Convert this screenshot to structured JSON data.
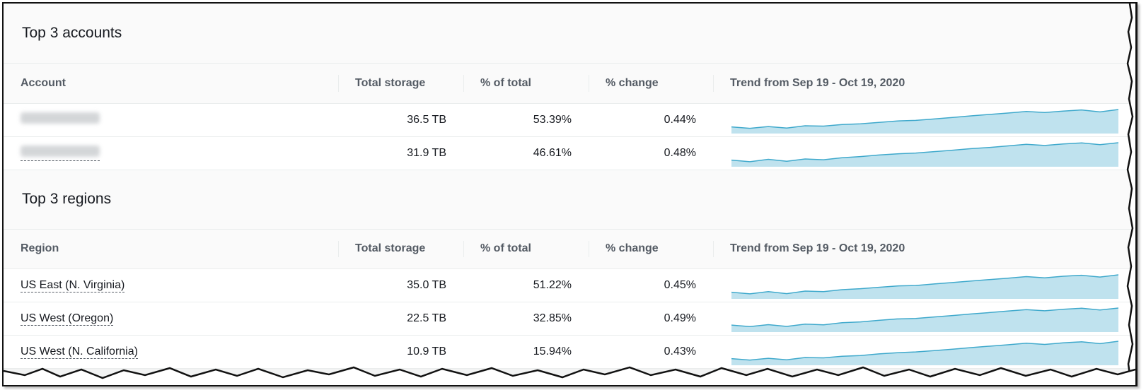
{
  "accounts": {
    "title": "Top 3 accounts",
    "columns": [
      "Account",
      "Total storage",
      "% of total",
      "% change",
      "Trend from Sep 19 - Oct 19, 2020"
    ],
    "rows": [
      {
        "account": "",
        "total_storage": "36.5 TB",
        "pct_total": "53.39%",
        "pct_change": "0.44%",
        "trend": [
          0.12,
          0.05,
          0.14,
          0.06,
          0.18,
          0.16,
          0.24,
          0.28,
          0.35,
          0.42,
          0.45,
          0.52,
          0.6,
          0.68,
          0.75,
          0.82,
          0.9,
          0.85,
          0.92,
          0.98,
          0.88,
          1.0
        ]
      },
      {
        "account": "",
        "total_storage": "31.9 TB",
        "pct_total": "46.61%",
        "pct_change": "0.48%",
        "trend": [
          0.12,
          0.04,
          0.16,
          0.06,
          0.18,
          0.14,
          0.24,
          0.3,
          0.38,
          0.44,
          0.48,
          0.55,
          0.62,
          0.7,
          0.76,
          0.84,
          0.92,
          0.86,
          0.94,
          0.99,
          0.9,
          1.0
        ]
      }
    ]
  },
  "regions": {
    "title": "Top 3 regions",
    "columns": [
      "Region",
      "Total storage",
      "% of total",
      "% change",
      "Trend from Sep 19 - Oct 19, 2020"
    ],
    "rows": [
      {
        "region": "US East (N. Virginia)",
        "total_storage": "35.0 TB",
        "pct_total": "51.22%",
        "pct_change": "0.45%",
        "trend": [
          0.12,
          0.04,
          0.15,
          0.05,
          0.18,
          0.15,
          0.25,
          0.3,
          0.37,
          0.44,
          0.46,
          0.54,
          0.61,
          0.69,
          0.76,
          0.83,
          0.91,
          0.85,
          0.93,
          0.98,
          0.89,
          1.0
        ]
      },
      {
        "region": "US West (Oregon)",
        "total_storage": "22.5 TB",
        "pct_total": "32.85%",
        "pct_change": "0.49%",
        "trend": [
          0.14,
          0.06,
          0.16,
          0.07,
          0.19,
          0.15,
          0.26,
          0.3,
          0.38,
          0.45,
          0.47,
          0.55,
          0.62,
          0.7,
          0.77,
          0.85,
          0.92,
          0.86,
          0.94,
          0.99,
          0.9,
          1.0
        ]
      },
      {
        "region": "US West (N. California)",
        "total_storage": "10.9 TB",
        "pct_total": "15.94%",
        "pct_change": "0.43%",
        "trend": [
          0.12,
          0.05,
          0.14,
          0.06,
          0.18,
          0.16,
          0.24,
          0.28,
          0.36,
          0.42,
          0.46,
          0.53,
          0.6,
          0.68,
          0.75,
          0.82,
          0.9,
          0.84,
          0.92,
          0.97,
          0.88,
          1.0
        ]
      }
    ]
  },
  "colors": {
    "spark_line": "#3fa9cc",
    "spark_fill": "#bfe2ee"
  }
}
